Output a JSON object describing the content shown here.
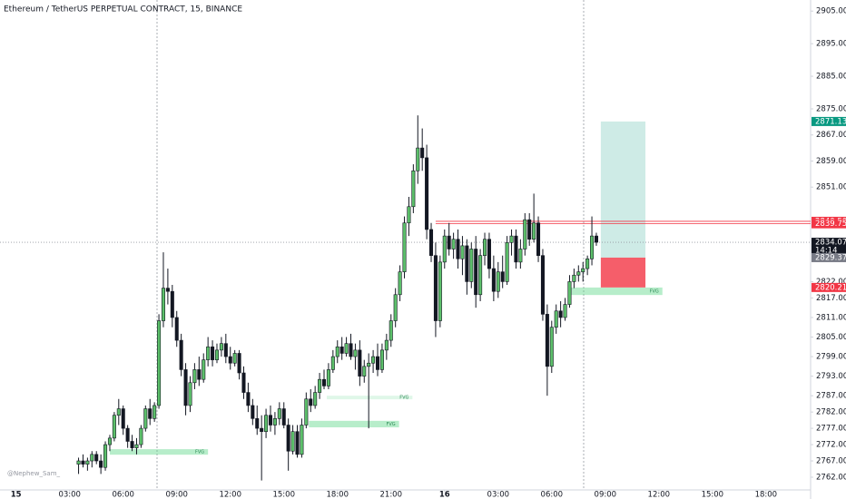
{
  "chart_data": {
    "type": "candlestick",
    "title": "Ethereum / TetherUS PERPETUAL CONTRACT, 15, BINANCE",
    "watermark": "@Nephew_Sam_",
    "up_color": "#5cbf6a",
    "down_color": "#131722",
    "xlim": [
      -0.9,
      44.5
    ],
    "ylim": [
      2758.1,
      2908.4
    ],
    "xticks": [
      {
        "value": 0,
        "label": "15"
      },
      {
        "value": 3,
        "label": "03:00"
      },
      {
        "value": 6,
        "label": "06:00"
      },
      {
        "value": 9,
        "label": "09:00"
      },
      {
        "value": 12,
        "label": "12:00"
      },
      {
        "value": 15,
        "label": "15:00"
      },
      {
        "value": 18,
        "label": "18:00"
      },
      {
        "value": 21,
        "label": "21:00"
      },
      {
        "value": 24,
        "label": "16"
      },
      {
        "value": 27,
        "label": "03:00"
      },
      {
        "value": 30,
        "label": "06:00"
      },
      {
        "value": 33,
        "label": "09:00"
      },
      {
        "value": 36,
        "label": "12:00"
      },
      {
        "value": 39,
        "label": "15:00"
      },
      {
        "value": 42,
        "label": "18:00"
      }
    ],
    "yticks": [
      {
        "value": 2905,
        "label": "2905.00"
      },
      {
        "value": 2895,
        "label": "2895.00"
      },
      {
        "value": 2885,
        "label": "2885.00"
      },
      {
        "value": 2875,
        "label": "2875.00"
      },
      {
        "value": 2867,
        "label": "2867.00"
      },
      {
        "value": 2859,
        "label": "2859.00"
      },
      {
        "value": 2851,
        "label": "2851.00"
      },
      {
        "value": 2822,
        "label": "2822.00"
      },
      {
        "value": 2817,
        "label": "2817.00"
      },
      {
        "value": 2811,
        "label": "2811.00"
      },
      {
        "value": 2805,
        "label": "2805.00"
      },
      {
        "value": 2799,
        "label": "2799.00"
      },
      {
        "value": 2793,
        "label": "2793.00"
      },
      {
        "value": 2787,
        "label": "2787.00"
      },
      {
        "value": 2782,
        "label": "2782.00"
      },
      {
        "value": 2777,
        "label": "2777.00"
      },
      {
        "value": 2772,
        "label": "2772.00"
      },
      {
        "value": 2767,
        "label": "2767.00"
      },
      {
        "value": 2762,
        "label": "2762.00"
      }
    ],
    "x": [
      3.5,
      3.75,
      4,
      4.25,
      4.5,
      4.75,
      5,
      5.25,
      5.5,
      5.75,
      6,
      6.25,
      6.5,
      6.75,
      7,
      7.25,
      7.5,
      7.75,
      8,
      8.25,
      8.5,
      8.75,
      9,
      9.25,
      9.5,
      9.75,
      10,
      10.25,
      10.5,
      10.75,
      11,
      11.25,
      11.5,
      11.75,
      12,
      12.25,
      12.5,
      12.75,
      13,
      13.25,
      13.5,
      13.75,
      14,
      14.25,
      14.5,
      14.75,
      15,
      15.25,
      15.5,
      15.75,
      16,
      16.25,
      16.5,
      16.75,
      17,
      17.25,
      17.5,
      17.75,
      18,
      18.25,
      18.5,
      18.75,
      19,
      19.25,
      19.5,
      19.75,
      20,
      20.25,
      20.5,
      20.75,
      21,
      21.25,
      21.5,
      21.75,
      22,
      22.25,
      22.5,
      22.75,
      23,
      23.25,
      23.5,
      23.75,
      24,
      24.25,
      24.5,
      24.75,
      25,
      25.25,
      25.5,
      25.75,
      26,
      26.25,
      26.5,
      26.75,
      27,
      27.25,
      27.5,
      27.75,
      28,
      28.25,
      28.5,
      28.75,
      29,
      29.25,
      29.5,
      29.75,
      30,
      30.25,
      30.5,
      30.75,
      31,
      31.25,
      31.5,
      31.75,
      32,
      32.25,
      32.5
    ],
    "open": [
      2766,
      2767,
      2766,
      2767,
      2769,
      2767,
      2765,
      2772,
      2774,
      2781,
      2783,
      2777,
      2773,
      2771,
      2772,
      2777,
      2783,
      2780,
      2784,
      2810,
      2820,
      2819,
      2811,
      2804,
      2795,
      2784,
      2791,
      2795,
      2792,
      2798,
      2802,
      2798,
      2801,
      2803,
      2799,
      2797,
      2800,
      2794,
      2788,
      2784,
      2780,
      2777,
      2776,
      2781,
      2778,
      2780,
      2783,
      2778,
      2770,
      2776,
      2769,
      2778,
      2786,
      2784,
      2788,
      2792,
      2790,
      2795,
      2799,
      2802,
      2800,
      2803,
      2799,
      2801,
      2793,
      2796,
      2797,
      2799,
      2795,
      2801,
      2804,
      2810,
      2818,
      2825,
      2840,
      2845,
      2856,
      2863,
      2860,
      2838,
      2830,
      2810,
      2828,
      2836,
      2832,
      2835,
      2829,
      2833,
      2822,
      2832,
      2818,
      2830,
      2835,
      2826,
      2819,
      2825,
      2822,
      2834,
      2836,
      2828,
      2832,
      2841,
      2835,
      2840,
      2830,
      2812,
      2796,
      2808,
      2813,
      2811,
      2815,
      2822,
      2824,
      2825,
      2826,
      2829,
      2836
    ],
    "high": [
      2768,
      2769,
      2768,
      2770,
      2770,
      2769,
      2773,
      2775,
      2782,
      2786,
      2784,
      2778,
      2775,
      2774,
      2778,
      2784,
      2786,
      2785,
      2812,
      2831,
      2826,
      2821,
      2813,
      2806,
      2797,
      2793,
      2797,
      2799,
      2800,
      2805,
      2804,
      2803,
      2805,
      2806,
      2802,
      2801,
      2801,
      2796,
      2791,
      2786,
      2784,
      2781,
      2783,
      2784,
      2782,
      2785,
      2785,
      2780,
      2778,
      2778,
      2780,
      2788,
      2789,
      2790,
      2794,
      2795,
      2797,
      2801,
      2804,
      2805,
      2805,
      2806,
      2803,
      2804,
      2798,
      2800,
      2801,
      2803,
      2803,
      2806,
      2812,
      2820,
      2827,
      2842,
      2848,
      2858,
      2873,
      2869,
      2864,
      2840,
      2834,
      2830,
      2838,
      2840,
      2837,
      2838,
      2836,
      2835,
      2834,
      2836,
      2832,
      2837,
      2837,
      2830,
      2828,
      2830,
      2836,
      2838,
      2838,
      2835,
      2843,
      2843,
      2849,
      2842,
      2832,
      2815,
      2810,
      2815,
      2816,
      2817,
      2824,
      2826,
      2827,
      2828,
      2830,
      2842,
      2837
    ],
    "low": [
      2763,
      2765,
      2764,
      2765,
      2766,
      2763,
      2764,
      2770,
      2773,
      2778,
      2775,
      2771,
      2770,
      2769,
      2771,
      2776,
      2778,
      2779,
      2783,
      2808,
      2815,
      2808,
      2802,
      2793,
      2781,
      2782,
      2789,
      2790,
      2791,
      2796,
      2796,
      2797,
      2799,
      2797,
      2795,
      2796,
      2792,
      2786,
      2782,
      2778,
      2775,
      2761,
      2774,
      2776,
      2775,
      2778,
      2777,
      2764,
      2769,
      2768,
      2768,
      2777,
      2782,
      2783,
      2786,
      2789,
      2789,
      2794,
      2797,
      2798,
      2799,
      2798,
      2795,
      2790,
      2791,
      2777,
      2794,
      2793,
      2794,
      2798,
      2802,
      2808,
      2816,
      2823,
      2836,
      2843,
      2852,
      2856,
      2835,
      2828,
      2805,
      2808,
      2826,
      2830,
      2829,
      2826,
      2824,
      2818,
      2820,
      2814,
      2816,
      2827,
      2823,
      2816,
      2817,
      2820,
      2821,
      2830,
      2826,
      2826,
      2830,
      2833,
      2834,
      2828,
      2810,
      2787,
      2794,
      2806,
      2808,
      2810,
      2814,
      2820,
      2822,
      2822,
      2824,
      2827,
      2833
    ],
    "close": [
      2767,
      2766,
      2767,
      2769,
      2767,
      2765,
      2772,
      2774,
      2781,
      2783,
      2777,
      2773,
      2771,
      2772,
      2777,
      2783,
      2780,
      2784,
      2810,
      2820,
      2819,
      2811,
      2804,
      2795,
      2784,
      2791,
      2795,
      2792,
      2798,
      2802,
      2798,
      2801,
      2803,
      2799,
      2797,
      2800,
      2794,
      2788,
      2784,
      2780,
      2777,
      2776,
      2781,
      2778,
      2780,
      2783,
      2778,
      2770,
      2776,
      2769,
      2778,
      2786,
      2784,
      2788,
      2792,
      2790,
      2795,
      2799,
      2802,
      2800,
      2803,
      2799,
      2801,
      2793,
      2796,
      2797,
      2799,
      2795,
      2801,
      2804,
      2810,
      2818,
      2825,
      2840,
      2845,
      2856,
      2863,
      2860,
      2838,
      2830,
      2810,
      2828,
      2836,
      2832,
      2835,
      2829,
      2833,
      2822,
      2832,
      2818,
      2830,
      2835,
      2826,
      2819,
      2825,
      2822,
      2834,
      2836,
      2828,
      2832,
      2841,
      2835,
      2840,
      2830,
      2812,
      2796,
      2808,
      2813,
      2811,
      2815,
      2822,
      2824,
      2825,
      2826,
      2829,
      2836,
      2834.07
    ],
    "fvg_color": "#5fd68a",
    "fvg_zones": [
      {
        "x": [
          5.25,
          10.75
        ],
        "y": [
          2768.9,
          2770.6
        ],
        "label": "FVG"
      },
      {
        "x": [
          16.4,
          21.45
        ],
        "y": [
          2777.3,
          2779.3
        ],
        "label": "FVG"
      },
      {
        "x": [
          17.4,
          22.2
        ],
        "y": [
          2785.9,
          2787.0
        ],
        "label": "FVG"
      },
      {
        "x": [
          31.0,
          36.2
        ],
        "y": [
          2817.9,
          2820.2
        ],
        "label": "FVG"
      }
    ],
    "position": {
      "x": [
        32.75,
        35.25
      ],
      "target": {
        "value": 2871.13,
        "label": "2871.13",
        "color": "#089981"
      },
      "entry": {
        "value": 2829.37,
        "label": "2829.37",
        "color": "#787b86"
      },
      "stop": {
        "value": 2820.21,
        "label": "2820.21",
        "color": "#f23645"
      }
    },
    "price_labels": [
      {
        "value": 2840.5,
        "label": "2840.50",
        "color": "#f23645",
        "line_from": 23.5
      },
      {
        "value": 2839.75,
        "label": "2839.75",
        "color": "#f23645",
        "line_from": 23.5
      },
      {
        "value": 2834.07,
        "label": "2834.07",
        "color": "#131722",
        "countdown": "14:14"
      }
    ]
  }
}
